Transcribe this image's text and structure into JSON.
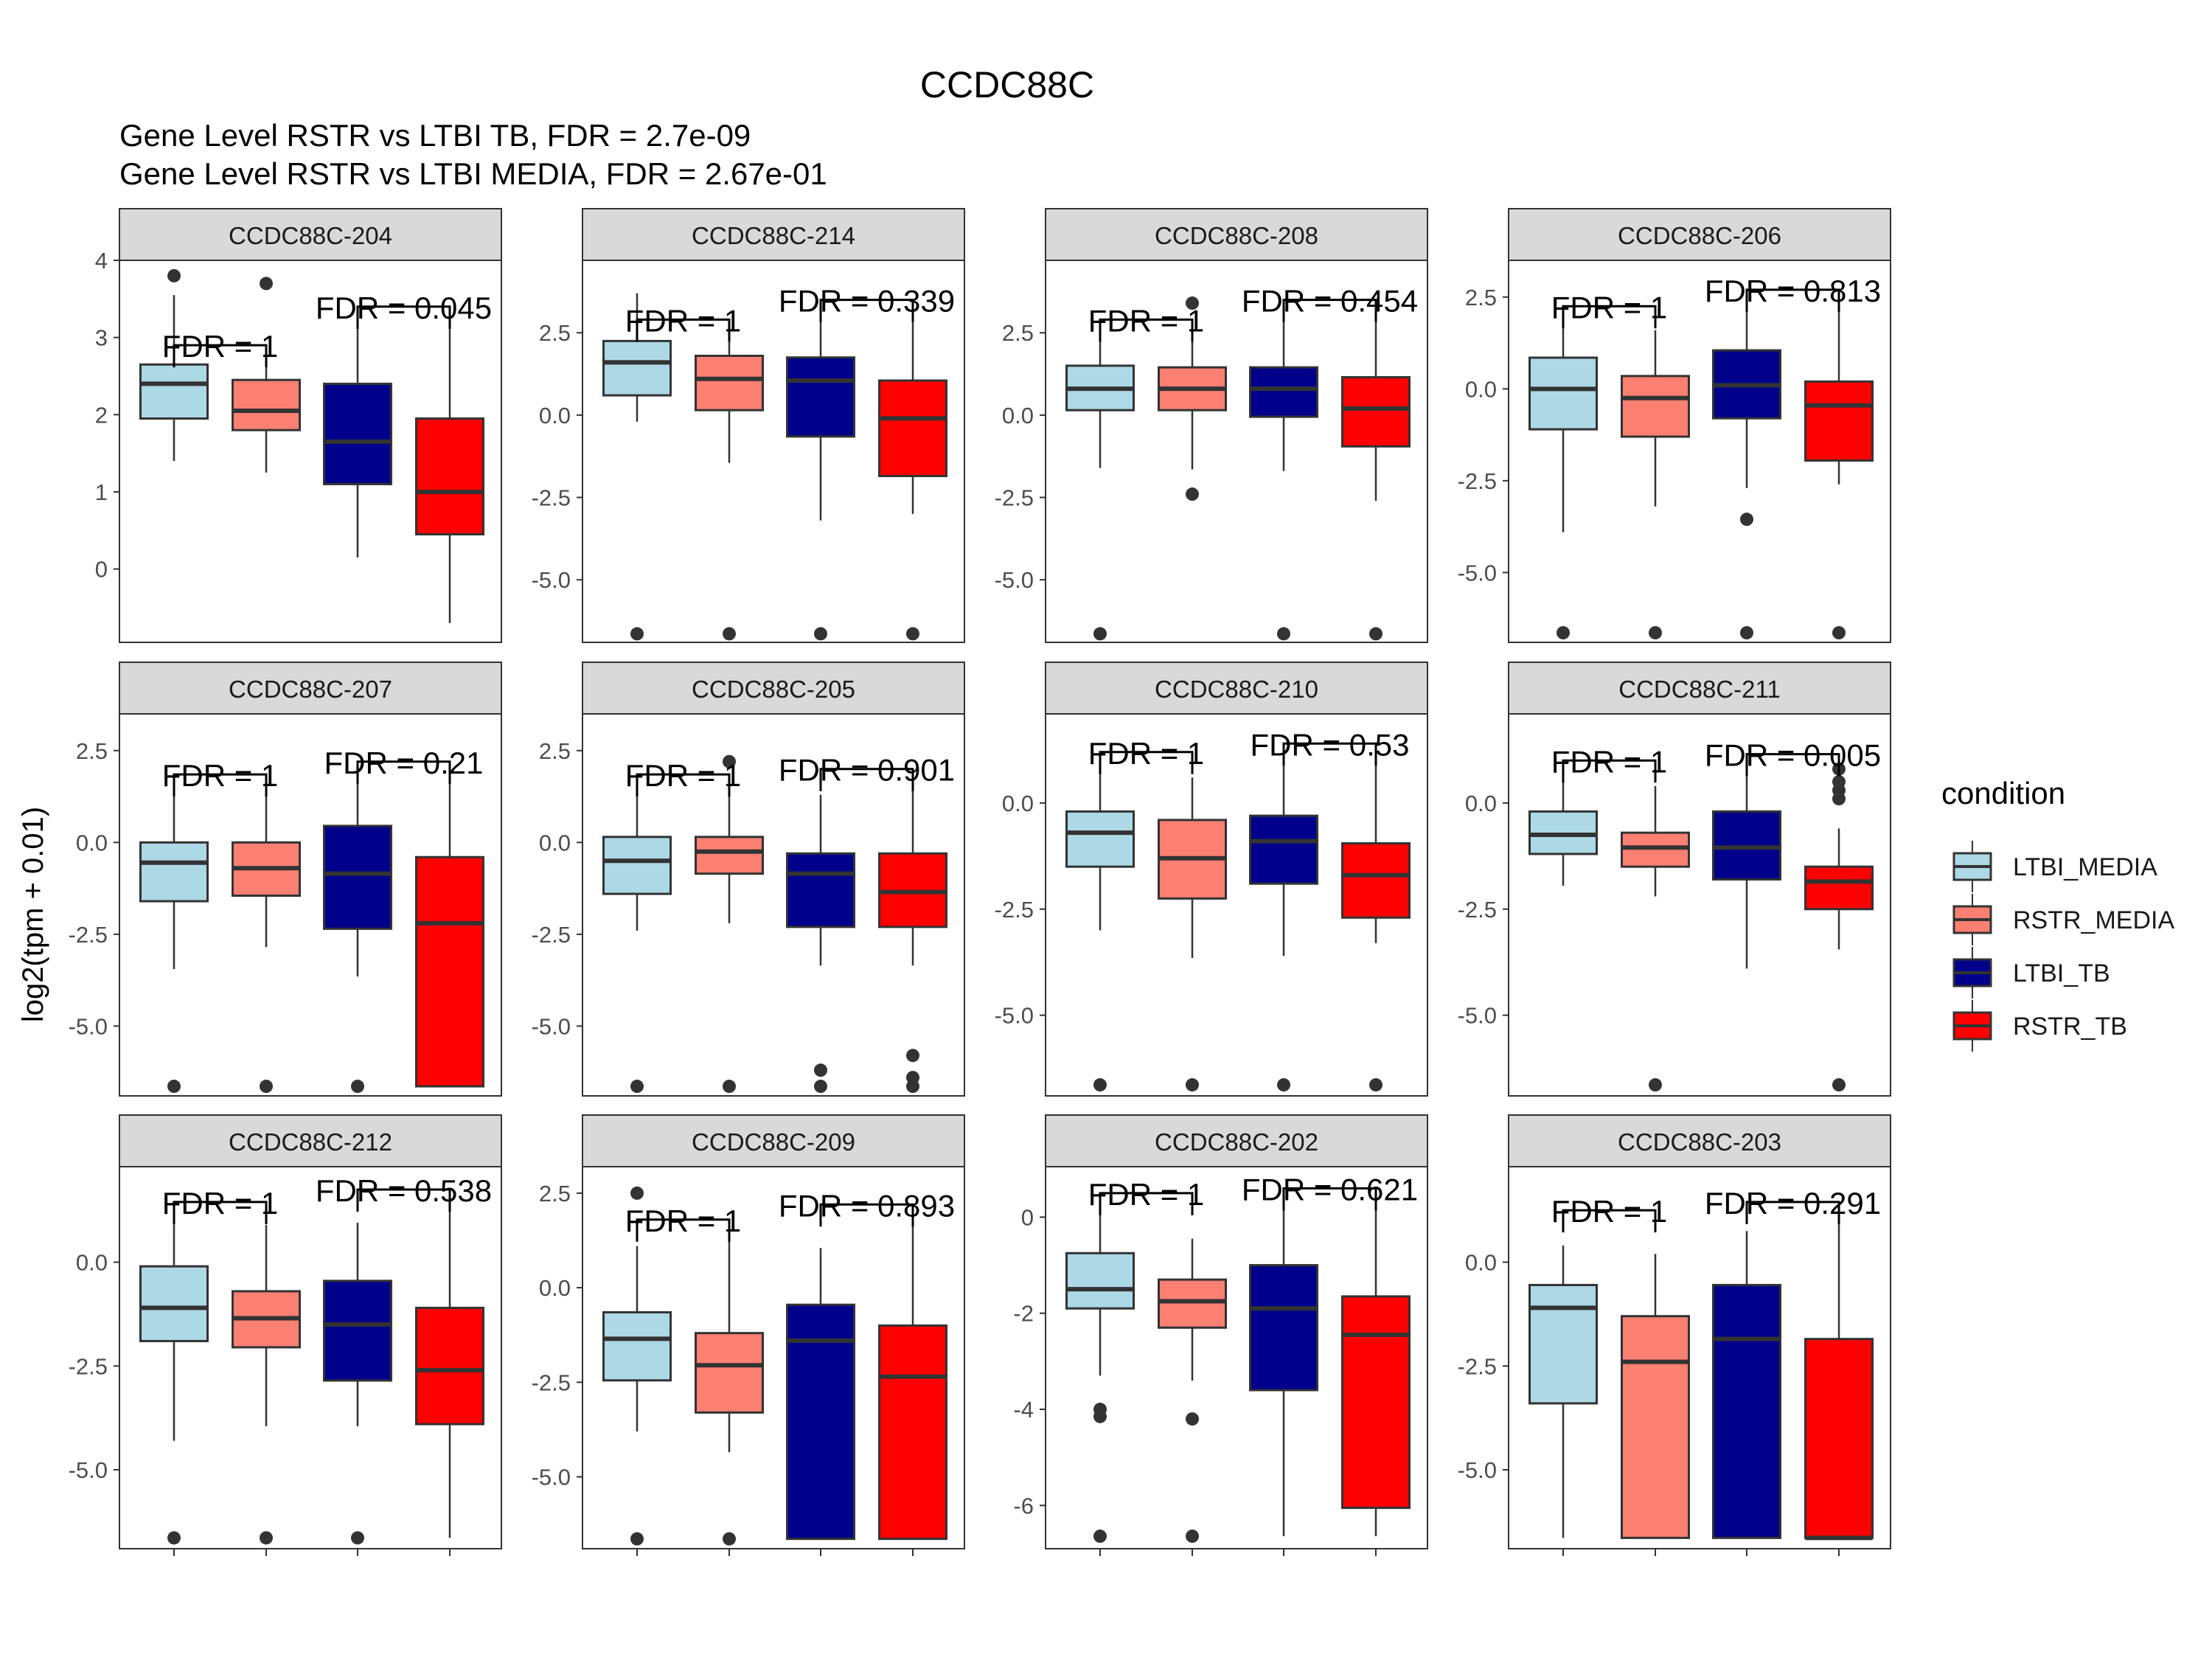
{
  "title": "CCDC88C",
  "subtitle_lines": [
    "Gene Level RSTR vs LTBI TB, FDR =  2.7e-09",
    "Gene Level RSTR vs LTBI MEDIA, FDR =  2.67e-01"
  ],
  "ylabel": "log2(tpm + 0.01)",
  "legend": {
    "title": "condition",
    "items": [
      {
        "label": "LTBI_MEDIA",
        "color": "#ADD8E6"
      },
      {
        "label": "RSTR_MEDIA",
        "color": "#FA8072"
      },
      {
        "label": "LTBI_TB",
        "color": "#00008B"
      },
      {
        "label": "RSTR_TB",
        "color": "#FF0000"
      }
    ]
  },
  "chart_data": {
    "type": "boxplot",
    "groups": [
      "LTBI_MEDIA",
      "RSTR_MEDIA",
      "LTBI_TB",
      "RSTR_TB"
    ],
    "panels": [
      {
        "name": "CCDC88C-204",
        "ylim": [
          -0.95,
          4.0
        ],
        "ticks": [
          0,
          1,
          2,
          3,
          4
        ],
        "tick_labels": [
          "0",
          "1",
          "2",
          "3",
          "4"
        ],
        "fdr_media": "FDR =  1",
        "fdr_media_y": 2.9,
        "fdr_tb": "FDR =  0.045",
        "fdr_tb_y": 3.4,
        "boxes": [
          {
            "lo": 1.4,
            "q1": 1.95,
            "med": 2.4,
            "q3": 2.65,
            "hi": 3.55,
            "outliers": [
              3.8
            ]
          },
          {
            "lo": 1.25,
            "q1": 1.8,
            "med": 2.05,
            "q3": 2.45,
            "hi": 2.9,
            "outliers": [
              3.7
            ]
          },
          {
            "lo": 0.15,
            "q1": 1.1,
            "med": 1.65,
            "q3": 2.4,
            "hi": 3.4,
            "outliers": []
          },
          {
            "lo": -0.7,
            "q1": 0.45,
            "med": 1.0,
            "q3": 1.95,
            "hi": 3.4,
            "outliers": []
          }
        ]
      },
      {
        "name": "CCDC88C-214",
        "ylim": [
          -6.9,
          4.7
        ],
        "ticks": [
          2.5,
          0,
          -2.5,
          -5
        ],
        "tick_labels": [
          "2.5",
          "0.0",
          "-2.5",
          "-5.0"
        ],
        "fdr_media": "FDR =  1",
        "fdr_media_y": 2.9,
        "fdr_tb": "FDR =  0.339",
        "fdr_tb_y": 3.5,
        "boxes": [
          {
            "lo": -0.2,
            "q1": 0.6,
            "med": 1.6,
            "q3": 2.25,
            "hi": 3.7,
            "outliers": [
              -6.64
            ]
          },
          {
            "lo": -1.45,
            "q1": 0.15,
            "med": 1.1,
            "q3": 1.8,
            "hi": 2.9,
            "outliers": [
              -6.64
            ]
          },
          {
            "lo": -3.2,
            "q1": -0.65,
            "med": 1.05,
            "q3": 1.75,
            "hi": 3.4,
            "outliers": [
              -6.64
            ]
          },
          {
            "lo": -3.0,
            "q1": -1.85,
            "med": -0.1,
            "q3": 1.05,
            "hi": 3.4,
            "outliers": [
              -6.64
            ]
          }
        ]
      },
      {
        "name": "CCDC88C-208",
        "ylim": [
          -6.9,
          4.7
        ],
        "ticks": [
          2.5,
          0,
          -2.5,
          -5
        ],
        "tick_labels": [
          "2.5",
          "0.0",
          "-2.5",
          "-5.0"
        ],
        "fdr_media": "FDR =  1",
        "fdr_media_y": 2.9,
        "fdr_tb": "FDR =  0.454",
        "fdr_tb_y": 3.5,
        "boxes": [
          {
            "lo": -1.6,
            "q1": 0.15,
            "med": 0.8,
            "q3": 1.5,
            "hi": 2.9,
            "outliers": [
              -6.64
            ]
          },
          {
            "lo": -1.65,
            "q1": 0.15,
            "med": 0.8,
            "q3": 1.45,
            "hi": 2.9,
            "outliers": [
              3.4,
              -2.4
            ]
          },
          {
            "lo": -1.7,
            "q1": -0.05,
            "med": 0.8,
            "q3": 1.45,
            "hi": 2.85,
            "outliers": [
              -6.64
            ]
          },
          {
            "lo": -2.6,
            "q1": -0.95,
            "med": 0.2,
            "q3": 1.15,
            "hi": 3.4,
            "outliers": [
              -6.64
            ]
          }
        ]
      },
      {
        "name": "CCDC88C-206",
        "ylim": [
          -6.9,
          3.5
        ],
        "ticks": [
          2.5,
          0,
          -2.5,
          -5
        ],
        "tick_labels": [
          "2.5",
          "0.0",
          "-2.5",
          "-5.0"
        ],
        "fdr_media": "FDR =  1",
        "fdr_media_y": 2.25,
        "fdr_tb": "FDR =  0.813",
        "fdr_tb_y": 2.7,
        "boxes": [
          {
            "lo": -3.9,
            "q1": -1.1,
            "med": 0.0,
            "q3": 0.85,
            "hi": 1.7,
            "outliers": [
              -6.64
            ]
          },
          {
            "lo": -3.2,
            "q1": -1.3,
            "med": -0.25,
            "q3": 0.35,
            "hi": 1.6,
            "outliers": [
              -6.64
            ]
          },
          {
            "lo": -2.7,
            "q1": -0.8,
            "med": 0.1,
            "q3": 1.05,
            "hi": 2.3,
            "outliers": [
              -3.55,
              -6.64
            ]
          },
          {
            "lo": -2.6,
            "q1": -1.95,
            "med": -0.45,
            "q3": 0.2,
            "hi": 2.7,
            "outliers": [
              -6.64
            ]
          }
        ]
      },
      {
        "name": "CCDC88C-207",
        "ylim": [
          -6.9,
          3.5
        ],
        "ticks": [
          2.5,
          0,
          -2.5,
          -5
        ],
        "tick_labels": [
          "2.5",
          "0.0",
          "-2.5",
          "-5.0"
        ],
        "fdr_media": "FDR =  1",
        "fdr_media_y": 1.85,
        "fdr_tb": "FDR =  0.21",
        "fdr_tb_y": 2.2,
        "boxes": [
          {
            "lo": -3.45,
            "q1": -1.6,
            "med": -0.55,
            "q3": 0.0,
            "hi": 1.85,
            "outliers": [
              -6.64
            ]
          },
          {
            "lo": -2.85,
            "q1": -1.45,
            "med": -0.7,
            "q3": 0.0,
            "hi": 1.5,
            "outliers": [
              -6.64
            ]
          },
          {
            "lo": -3.65,
            "q1": -2.35,
            "med": -0.85,
            "q3": 0.45,
            "hi": 1.75,
            "outliers": [
              -6.64
            ]
          },
          {
            "lo": -6.64,
            "q1": -6.64,
            "med": -2.2,
            "q3": -0.4,
            "hi": 2.2,
            "outliers": []
          }
        ]
      },
      {
        "name": "CCDC88C-205",
        "ylim": [
          -6.9,
          3.5
        ],
        "ticks": [
          2.5,
          0,
          -2.5,
          -5
        ],
        "tick_labels": [
          "2.5",
          "0.0",
          "-2.5",
          "-5.0"
        ],
        "fdr_media": "FDR =  1",
        "fdr_media_y": 1.85,
        "fdr_tb": "FDR =  0.901",
        "fdr_tb_y": 2.0,
        "boxes": [
          {
            "lo": -2.4,
            "q1": -1.4,
            "med": -0.5,
            "q3": 0.15,
            "hi": 1.5,
            "outliers": [
              -6.64
            ]
          },
          {
            "lo": -2.2,
            "q1": -0.85,
            "med": -0.25,
            "q3": 0.15,
            "hi": 1.6,
            "outliers": [
              2.2,
              -6.64
            ]
          },
          {
            "lo": -3.35,
            "q1": -2.3,
            "med": -0.85,
            "q3": -0.3,
            "hi": 1.3,
            "outliers": [
              -6.2,
              -6.64
            ]
          },
          {
            "lo": -3.35,
            "q1": -2.3,
            "med": -1.35,
            "q3": -0.3,
            "hi": 1.85,
            "outliers": [
              -5.8,
              -6.4,
              -6.64
            ]
          }
        ]
      },
      {
        "name": "CCDC88C-210",
        "ylim": [
          -6.9,
          2.1
        ],
        "ticks": [
          0,
          -2.5,
          -5
        ],
        "tick_labels": [
          "0.0",
          "-2.5",
          "-5.0"
        ],
        "fdr_media": "FDR =  1",
        "fdr_media_y": 1.2,
        "fdr_tb": "FDR =  0.53",
        "fdr_tb_y": 1.4,
        "boxes": [
          {
            "lo": -3.0,
            "q1": -1.5,
            "med": -0.7,
            "q3": -0.2,
            "hi": 1.2,
            "outliers": [
              -6.64
            ]
          },
          {
            "lo": -3.65,
            "q1": -2.25,
            "med": -1.3,
            "q3": -0.4,
            "hi": 0.6,
            "outliers": [
              -6.64
            ]
          },
          {
            "lo": -3.6,
            "q1": -1.9,
            "med": -0.9,
            "q3": -0.3,
            "hi": 1.4,
            "outliers": [
              -6.64
            ]
          },
          {
            "lo": -3.3,
            "q1": -2.7,
            "med": -1.7,
            "q3": -0.95,
            "hi": 1.4,
            "outliers": [
              -6.64
            ]
          }
        ]
      },
      {
        "name": "CCDC88C-211",
        "ylim": [
          -6.9,
          2.1
        ],
        "ticks": [
          0,
          -2.5,
          -5
        ],
        "tick_labels": [
          "0.0",
          "-2.5",
          "-5.0"
        ],
        "fdr_media": "FDR =  1",
        "fdr_media_y": 1.0,
        "fdr_tb": "FDR =  0.005",
        "fdr_tb_y": 1.15,
        "boxes": [
          {
            "lo": -1.95,
            "q1": -1.2,
            "med": -0.75,
            "q3": -0.2,
            "hi": 1.0,
            "outliers": []
          },
          {
            "lo": -2.2,
            "q1": -1.5,
            "med": -1.05,
            "q3": -0.7,
            "hi": 0.4,
            "outliers": [
              -6.64
            ]
          },
          {
            "lo": -3.9,
            "q1": -1.8,
            "med": -1.05,
            "q3": -0.2,
            "hi": 0.75,
            "outliers": []
          },
          {
            "lo": -3.45,
            "q1": -2.5,
            "med": -1.85,
            "q3": -1.5,
            "hi": -0.6,
            "outliers": [
              0.8,
              0.5,
              0.3,
              0.1,
              -6.64
            ]
          }
        ]
      },
      {
        "name": "CCDC88C-212",
        "ylim": [
          -6.9,
          2.3
        ],
        "ticks": [
          0,
          -2.5,
          -5
        ],
        "tick_labels": [
          "0.0",
          "-2.5",
          "-5.0"
        ],
        "fdr_media": "FDR =  1",
        "fdr_media_y": 1.45,
        "fdr_tb": "FDR =  0.538",
        "fdr_tb_y": 1.75,
        "boxes": [
          {
            "lo": -4.3,
            "q1": -1.9,
            "med": -1.1,
            "q3": -0.1,
            "hi": 1.45,
            "outliers": [
              -6.64
            ]
          },
          {
            "lo": -3.95,
            "q1": -2.05,
            "med": -1.35,
            "q3": -0.7,
            "hi": 0.9,
            "outliers": [
              -6.64
            ]
          },
          {
            "lo": -3.95,
            "q1": -2.85,
            "med": -1.5,
            "q3": -0.45,
            "hi": 0.95,
            "outliers": [
              -6.64
            ]
          },
          {
            "lo": -6.64,
            "q1": -3.9,
            "med": -2.6,
            "q3": -1.1,
            "hi": 1.75,
            "outliers": []
          }
        ]
      },
      {
        "name": "CCDC88C-209",
        "ylim": [
          -6.9,
          3.2
        ],
        "ticks": [
          2.5,
          0,
          -2.5,
          -5
        ],
        "tick_labels": [
          "2.5",
          "0.0",
          "-2.5",
          "-5.0"
        ],
        "fdr_media": "FDR =  1",
        "fdr_media_y": 1.8,
        "fdr_tb": "FDR =  0.893",
        "fdr_tb_y": 2.2,
        "boxes": [
          {
            "lo": -3.8,
            "q1": -2.45,
            "med": -1.35,
            "q3": -0.65,
            "hi": 1.1,
            "outliers": [
              2.5,
              -6.64
            ]
          },
          {
            "lo": -4.35,
            "q1": -3.3,
            "med": -2.05,
            "q3": -1.2,
            "hi": 1.5,
            "outliers": [
              -6.64
            ]
          },
          {
            "lo": -6.64,
            "q1": -6.64,
            "med": -1.4,
            "q3": -0.45,
            "hi": 1.05,
            "outliers": []
          },
          {
            "lo": -6.64,
            "q1": -6.64,
            "med": -2.35,
            "q3": -1.0,
            "hi": 2.2,
            "outliers": []
          }
        ]
      },
      {
        "name": "CCDC88C-202",
        "ylim": [
          -6.9,
          1.05
        ],
        "ticks": [
          0,
          -2,
          -4,
          -6
        ],
        "tick_labels": [
          "0",
          "-2",
          "-4",
          "-6"
        ],
        "fdr_media": "FDR =  1",
        "fdr_media_y": 0.5,
        "fdr_tb": "FDR =  0.621",
        "fdr_tb_y": 0.6,
        "boxes": [
          {
            "lo": -3.3,
            "q1": -1.9,
            "med": -1.5,
            "q3": -0.75,
            "hi": 0.5,
            "outliers": [
              -4.0,
              -4.15,
              -6.64
            ]
          },
          {
            "lo": -3.4,
            "q1": -2.3,
            "med": -1.75,
            "q3": -1.3,
            "hi": -0.45,
            "outliers": [
              -4.2,
              -6.64
            ]
          },
          {
            "lo": -6.64,
            "q1": -3.6,
            "med": -1.9,
            "q3": -1.0,
            "hi": 0.6,
            "outliers": []
          },
          {
            "lo": -6.64,
            "q1": -6.05,
            "med": -2.45,
            "q3": -1.65,
            "hi": 0.6,
            "outliers": []
          }
        ]
      },
      {
        "name": "CCDC88C-203",
        "ylim": [
          -6.9,
          2.3
        ],
        "ticks": [
          0,
          -2.5,
          -5
        ],
        "tick_labels": [
          "0.0",
          "-2.5",
          "-5.0"
        ],
        "fdr_media": "FDR =  1",
        "fdr_media_y": 1.25,
        "fdr_tb": "FDR =  0.291",
        "fdr_tb_y": 1.45,
        "boxes": [
          {
            "lo": -6.64,
            "q1": -3.4,
            "med": -1.1,
            "q3": -0.55,
            "hi": 0.4,
            "outliers": []
          },
          {
            "lo": -6.64,
            "q1": -6.64,
            "med": -2.4,
            "q3": -1.3,
            "hi": 0.2,
            "outliers": []
          },
          {
            "lo": -6.64,
            "q1": -6.64,
            "med": -1.85,
            "q3": -0.55,
            "hi": 0.75,
            "outliers": []
          },
          {
            "lo": -6.64,
            "q1": -6.64,
            "med": -6.64,
            "q3": -1.85,
            "hi": 1.45,
            "outliers": []
          }
        ]
      }
    ]
  }
}
